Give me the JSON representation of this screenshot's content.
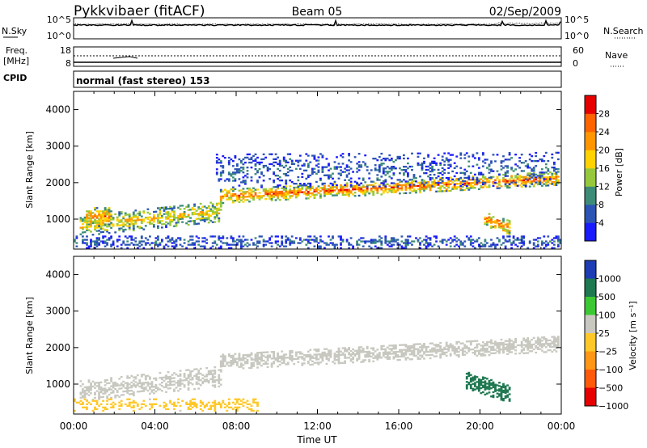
{
  "header": {
    "station": "Pykkvibaer (fitACF)",
    "beam": "Beam 05",
    "date": "02/Sep/2009"
  },
  "noise_panel": {
    "left_label": "N.Sky",
    "right_label": "N.Search",
    "left_ticks": [
      "10^5",
      "10^0"
    ],
    "right_ticks": [
      "10^5",
      "10^0"
    ]
  },
  "freq_panel": {
    "left_label_1": "Freq.",
    "left_label_2": "[MHz]",
    "right_label": "Nave",
    "left_ticks": [
      "18",
      "8"
    ],
    "right_ticks": [
      "60",
      "0"
    ]
  },
  "cpid": {
    "label": "CPID",
    "value": "normal (fast stereo) 153"
  },
  "chart_data": [
    {
      "type": "heatmap",
      "name": "power",
      "ylabel": "Slant Range [km]",
      "ylim": [
        180,
        4500
      ],
      "xlim": [
        0,
        24
      ],
      "yticks": [
        "1000",
        "2000",
        "3000",
        "4000"
      ],
      "colorbar": {
        "label": "Power [dB]",
        "ticks": [
          "4",
          "8",
          "12",
          "16",
          "20",
          "24",
          "28"
        ],
        "colors": [
          "#1a1aff",
          "#2c54b4",
          "#3c8c78",
          "#96c83c",
          "#ffd200",
          "#ff9600",
          "#ff6400",
          "#e60000"
        ]
      },
      "features": [
        {
          "t0": 0.3,
          "t1": 7.2,
          "r_start": 800,
          "r_end": 1200,
          "width": 280,
          "value": 18,
          "density": 0.65
        },
        {
          "t0": 0.6,
          "t1": 1.9,
          "r_start": 1050,
          "r_end": 1050,
          "width": 260,
          "value": 23,
          "density": 0.8
        },
        {
          "t0": 7.2,
          "t1": 23.9,
          "r_start": 1600,
          "r_end": 2100,
          "width": 180,
          "value": 24,
          "density": 0.8
        },
        {
          "t0": 7.0,
          "t1": 23.9,
          "r_start": 2300,
          "r_end": 2350,
          "width": 450,
          "value": 7,
          "density": 0.3
        },
        {
          "t0": 20.2,
          "t1": 21.5,
          "r_start": 1000,
          "r_end": 750,
          "width": 200,
          "value": 24,
          "density": 0.85
        },
        {
          "t0": 0.0,
          "t1": 24.0,
          "r_start": 360,
          "r_end": 360,
          "width": 170,
          "value": 7,
          "density": 0.45
        }
      ]
    },
    {
      "type": "heatmap",
      "name": "velocity",
      "xlabel": "Time UT",
      "ylabel": "Slant Range [km]",
      "ylim": [
        180,
        4500
      ],
      "xlim": [
        0,
        24
      ],
      "yticks": [
        "1000",
        "2000",
        "3000",
        "4000"
      ],
      "xticks": [
        "00:00",
        "04:00",
        "08:00",
        "12:00",
        "16:00",
        "20:00",
        "00:00"
      ],
      "colorbar": {
        "label": "Velocity [m s⁻¹]",
        "ticks": [
          "1000",
          "500",
          "100",
          "25",
          "−25",
          "−100",
          "−500",
          "−1000"
        ],
        "colors": [
          "#1e3cb4",
          "#1e7850",
          "#3cc832",
          "#c8c8c0",
          "#ffc828",
          "#ff9614",
          "#ff5a0a",
          "#e60000"
        ]
      },
      "features": [
        {
          "t0": 0.3,
          "t1": 7.2,
          "r_start": 800,
          "r_end": 1200,
          "width": 280,
          "value": 0,
          "density": 0.6
        },
        {
          "t0": 7.2,
          "t1": 23.9,
          "r_start": 1600,
          "r_end": 2100,
          "width": 220,
          "value": 0,
          "density": 0.75
        },
        {
          "t0": 19.3,
          "t1": 21.5,
          "r_start": 1100,
          "r_end": 700,
          "width": 240,
          "value": 300,
          "density": 0.85
        },
        {
          "t0": 0.0,
          "t1": 9.0,
          "r_start": 420,
          "r_end": 420,
          "width": 170,
          "value": -60,
          "density": 0.4
        }
      ]
    }
  ]
}
